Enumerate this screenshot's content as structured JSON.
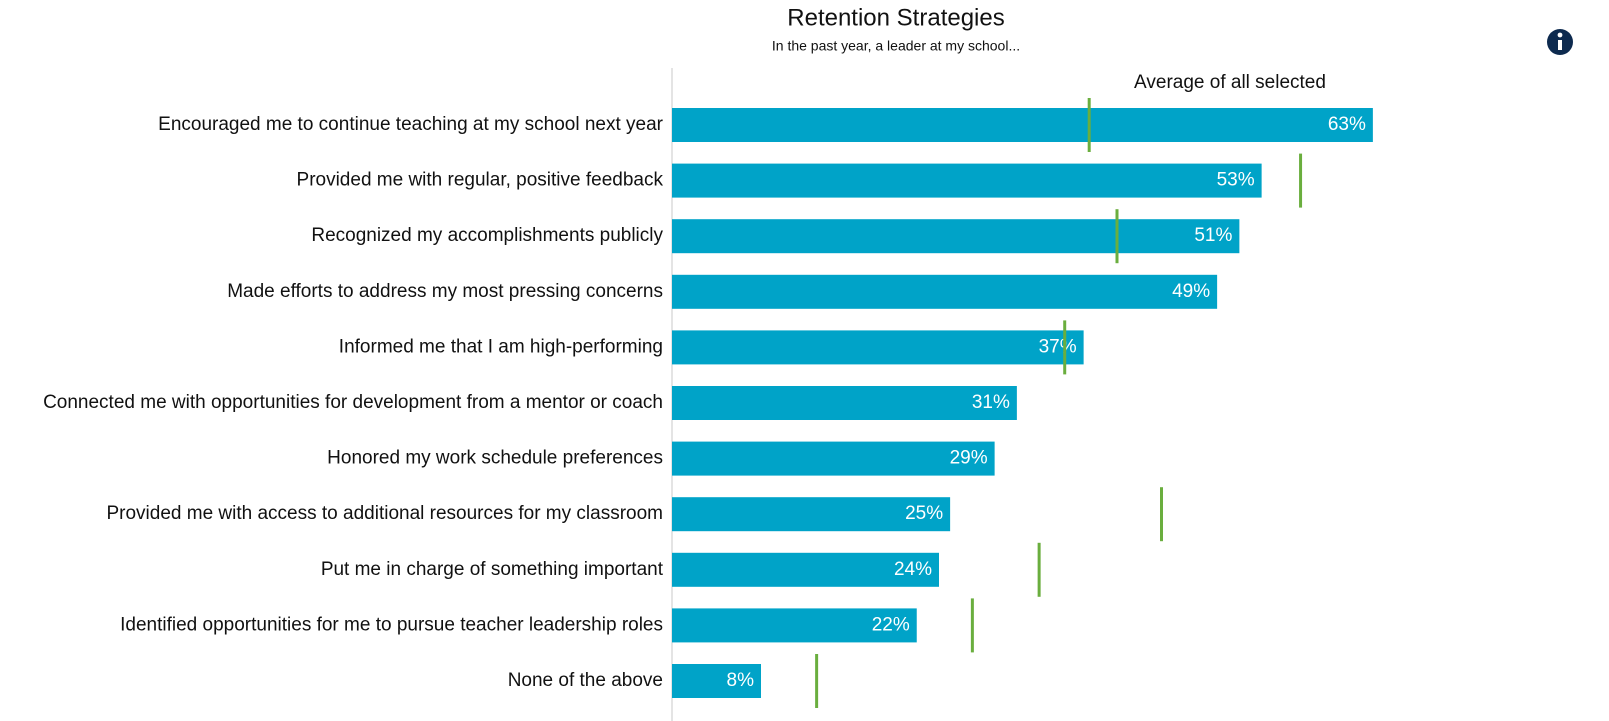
{
  "chart_data": {
    "type": "bar",
    "orientation": "horizontal",
    "title": "Retention Strategies",
    "subtitle": "In the past year, a leader at my school...",
    "categories": [
      "Encouraged me to continue teaching at my school next year",
      "Provided me with regular, positive feedback",
      "Recognized my accomplishments publicly",
      "Made efforts to address my most pressing concerns",
      "Informed me that I am high-performing",
      "Connected me with opportunities for development from a mentor or coach",
      "Honored my work schedule preferences",
      "Provided me with access to additional resources for my classroom",
      "Put me in charge of something important",
      "Identified opportunities for me to pursue teacher leadership roles",
      "None of the above"
    ],
    "values": [
      63,
      53,
      51,
      49,
      37,
      31,
      29,
      25,
      24,
      22,
      8
    ],
    "value_labels": [
      "63%",
      "53%",
      "51%",
      "49%",
      "37%",
      "31%",
      "29%",
      "25%",
      "24%",
      "22%",
      "8%"
    ],
    "color": "#00a3c8",
    "reference": {
      "name": "Average of all selected",
      "color": "#6aae3e",
      "values": [
        37.5,
        56.5,
        40,
        null,
        35.3,
        null,
        null,
        44,
        33,
        27,
        13
      ]
    },
    "xlim": [
      0,
      80
    ]
  }
}
